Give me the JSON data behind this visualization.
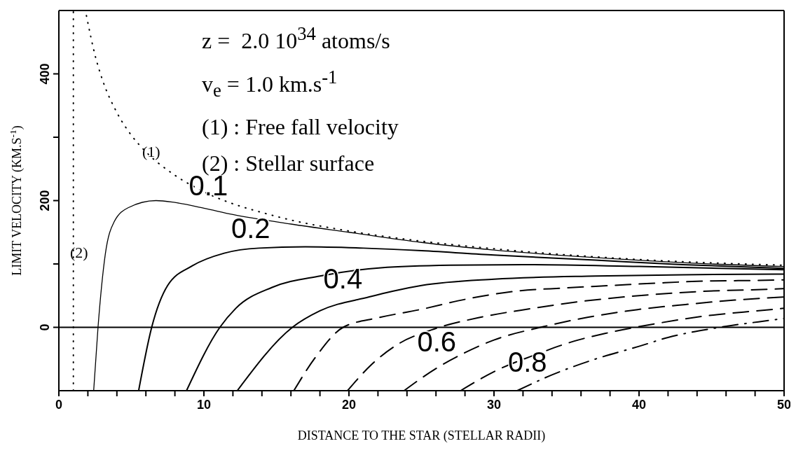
{
  "chart_data": {
    "type": "line",
    "xlabel": "DISTANCE TO THE STAR (STELLAR RADII)",
    "ylabel": "LIMIT VELOCITY (KM.S$^{-1}$)",
    "xlim": [
      0,
      50
    ],
    "xticks": [
      0,
      {
        "value": 2,
        "label": null
      },
      {
        "value": 4,
        "label": null
      },
      {
        "value": 6,
        "label": null
      },
      {
        "value": 8,
        "label": null
      },
      10,
      {
        "value": 12,
        "label": null
      },
      {
        "value": 14,
        "label": null
      },
      {
        "value": 16,
        "label": null
      },
      {
        "value": 18,
        "label": null
      },
      20,
      {
        "value": 22,
        "label": null
      },
      {
        "value": 24,
        "label": null
      },
      {
        "value": 26,
        "label": null
      },
      {
        "value": 28,
        "label": null
      },
      30,
      {
        "value": 32,
        "label": null
      },
      {
        "value": 34,
        "label": null
      },
      {
        "value": 36,
        "label": null
      },
      {
        "value": 38,
        "label": null
      },
      40,
      {
        "value": 42,
        "label": null
      },
      {
        "value": 44,
        "label": null
      },
      {
        "value": 46,
        "label": null
      },
      {
        "value": 48,
        "label": null
      },
      50
    ],
    "ylim": [
      -100,
      500
    ],
    "yticks": [
      0,
      {
        "value": 100,
        "label": null
      },
      200,
      {
        "value": 300,
        "label": null
      },
      400
    ],
    "series": [
      {
        "color": "#000000",
        "line_style": "dotted",
        "x": [
          1.9,
          2.5,
          3,
          4,
          5,
          6,
          8,
          10,
          15,
          20,
          25,
          30,
          40,
          50
        ],
        "values": [
          492,
          429,
          391,
          339,
          303,
          277,
          240,
          214,
          175,
          152,
          136,
          124,
          107,
          98
        ]
      },
      {
        "name": "0.1",
        "color": "#000000",
        "line_style": "solid",
        "x": [
          2.4,
          2.7,
          3.2,
          3.8,
          4.8,
          6.7,
          8,
          10,
          12,
          16,
          20,
          25,
          30,
          37,
          43,
          50
        ],
        "values": [
          -100,
          0,
          115,
          166,
          189,
          200,
          197,
          188,
          178,
          163,
          150,
          134,
          122,
          110,
          102,
          96
        ]
      },
      {
        "name": "0.2",
        "color": "#000000",
        "line_style": "solid",
        "x": [
          5.5,
          6.4,
          7.5,
          9.2,
          11.4,
          13.8,
          17,
          21,
          25,
          30,
          37,
          43,
          50
        ],
        "values": [
          -100,
          0,
          66,
          97,
          117,
          125,
          127,
          125,
          121,
          114,
          106,
          99,
          93
        ]
      },
      {
        "color": "#000000",
        "line_style": "solid",
        "x": [
          8.8,
          11.1,
          12.2,
          14.7,
          18,
          22.2,
          27,
          32,
          40,
          50
        ],
        "values": [
          -100,
          0,
          30,
          63,
          81,
          94,
          98,
          99,
          96,
          91
        ]
      },
      {
        "name": "0.4",
        "color": "#000000",
        "line_style": "solid",
        "x": [
          12.3,
          16.1,
          18,
          21.4,
          23,
          25,
          30,
          37,
          43,
          50
        ],
        "values": [
          -100,
          0,
          26,
          48,
          57,
          66,
          76,
          81,
          83,
          84
        ]
      },
      {
        "color": "#000000",
        "line_style": "dashed",
        "x": [
          16.2,
          17.7,
          19.6,
          22,
          24.9,
          28.2,
          31.5,
          34.8,
          38.1,
          41.4,
          44.6,
          48.1,
          50
        ],
        "values": [
          -100,
          -47,
          0,
          15,
          28,
          45,
          57,
          62,
          66,
          70,
          73,
          74,
          75
        ]
      },
      {
        "name": "0.6",
        "color": "#000000",
        "line_style": "dashed",
        "x": [
          19.9,
          21.5,
          23.5,
          25.7,
          29.1,
          32.4,
          35.7,
          39,
          42.3,
          45.7,
          49,
          50
        ],
        "values": [
          -100,
          -60,
          -25,
          -4,
          16,
          29,
          40,
          48,
          54,
          58,
          60,
          61
        ]
      },
      {
        "color": "#000000",
        "line_style": "dashed",
        "x": [
          23.8,
          26,
          28,
          30,
          33.4,
          36.5,
          39.9,
          43.2,
          46.6,
          50
        ],
        "values": [
          -100,
          -65,
          -40,
          -20,
          1,
          16,
          28,
          36,
          43,
          48
        ]
      },
      {
        "name": "0.8",
        "color": "#000000",
        "line_style": "dashed",
        "x": [
          27.7,
          30,
          33,
          35.5,
          37.8,
          41.2,
          44.6,
          48.1,
          50
        ],
        "values": [
          -100,
          -70,
          -42,
          -22,
          -9,
          6,
          18,
          26,
          30
        ]
      },
      {
        "color": "#000000",
        "line_style": "dashdot",
        "x": [
          31.6,
          34,
          37,
          40,
          42,
          45.3,
          49,
          50
        ],
        "values": [
          -100,
          -75,
          -50,
          -30,
          -16,
          -1,
          11,
          14
        ]
      }
    ],
    "ref_lines": [
      {
        "axis": "x",
        "value": 1,
        "color": "#000000",
        "line_style": "dotted"
      },
      {
        "axis": "y",
        "value": 0,
        "color": "#000000",
        "line_style": "solid"
      }
    ],
    "annotations": [
      "z =  2.0 10$^{34}$ atoms/s",
      "v$_{e}$ = 1.0 km.s$^{-1}$",
      "(1) : Free fall velocity",
      "(2) : Stellar surface",
      "(1)",
      "(2)"
    ]
  }
}
